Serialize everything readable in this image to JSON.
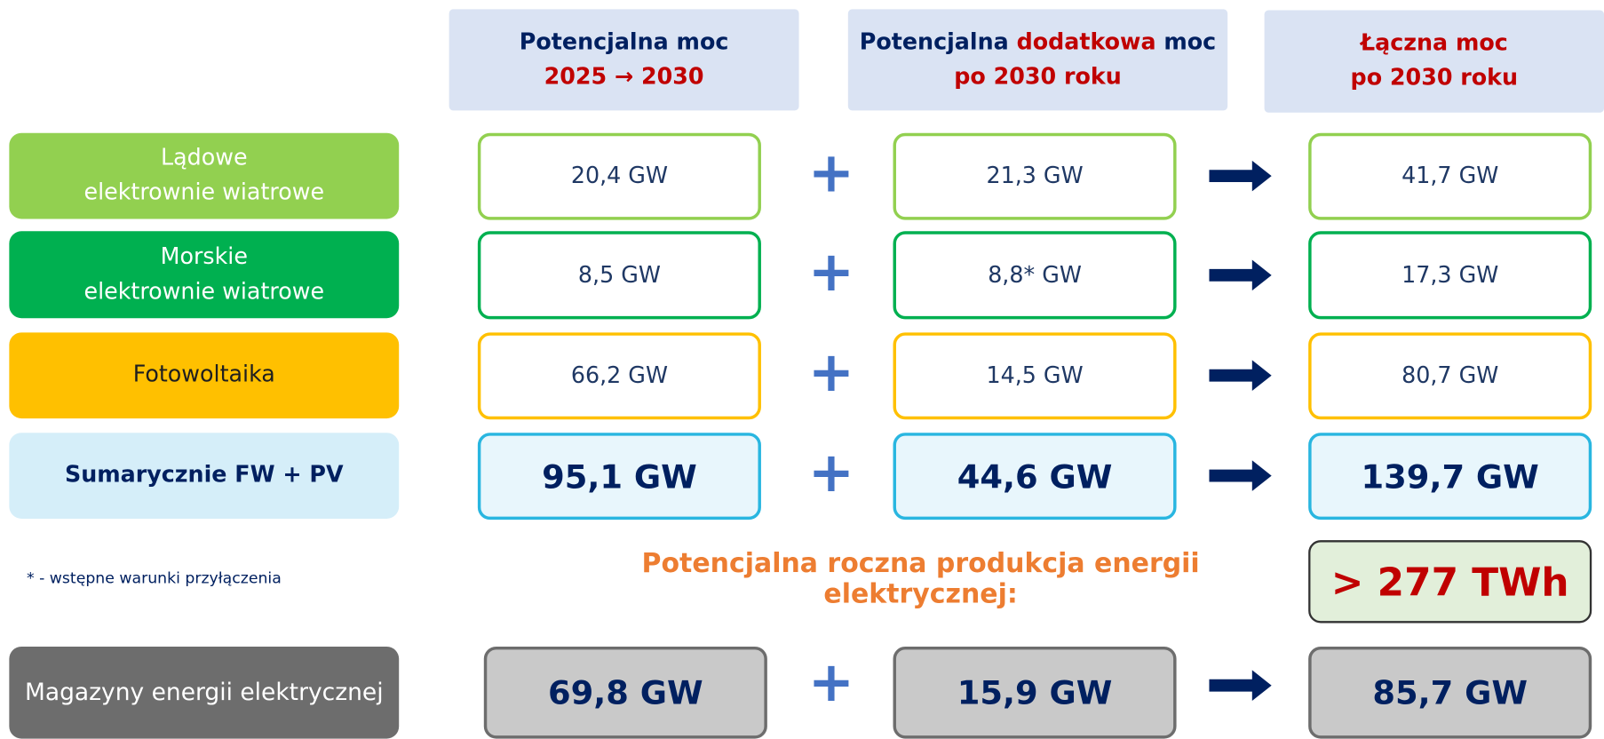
{
  "headers": [
    {
      "parts": [
        {
          "text": "Potencjalna moc",
          "color": "#002060"
        },
        {
          "text": "2025 → 2030",
          "color": "#c00000"
        }
      ]
    },
    {
      "parts": [
        {
          "text": "Potencjalna ",
          "color": "#002060"
        },
        {
          "text": "dodatkowa",
          "color": "#c00000"
        },
        {
          "text": " moc",
          "color": "#002060"
        },
        {
          "text": "po 2030 roku",
          "color": "#c00000"
        }
      ]
    },
    {
      "parts": [
        {
          "text": "Łączna moc",
          "color": "#c00000"
        },
        {
          "text": "po 2030 roku",
          "color": "#c00000"
        }
      ]
    }
  ],
  "rows": [
    {
      "label": "Lądowe\nelektrownie wiatrowe",
      "values": [
        "20,4 GW",
        "21,3 GW",
        "41,7 GW"
      ]
    },
    {
      "label": "Morskie\nelektrownie wiatrowe",
      "values": [
        "8,5 GW",
        "8,8* GW",
        "17,3 GW"
      ]
    },
    {
      "label": "Fotowoltaika",
      "values": [
        "66,2 GW",
        "14,5 GW",
        "80,7 GW"
      ]
    },
    {
      "label": "Sumarycznie FW + PV",
      "values": [
        "95,1 GW",
        "44,6 GW",
        "139,7 GW"
      ]
    }
  ],
  "footnote": "* - wstępne warunki przyłączenia",
  "production": {
    "label": "Potencjalna roczna produkcja energii elektrycznej:",
    "value": "> 277 TWh"
  },
  "storage": {
    "label": "Magazyny energii elektrycznej",
    "values": [
      "69,8 GW",
      "15,9 GW",
      "85,7 GW"
    ]
  }
}
